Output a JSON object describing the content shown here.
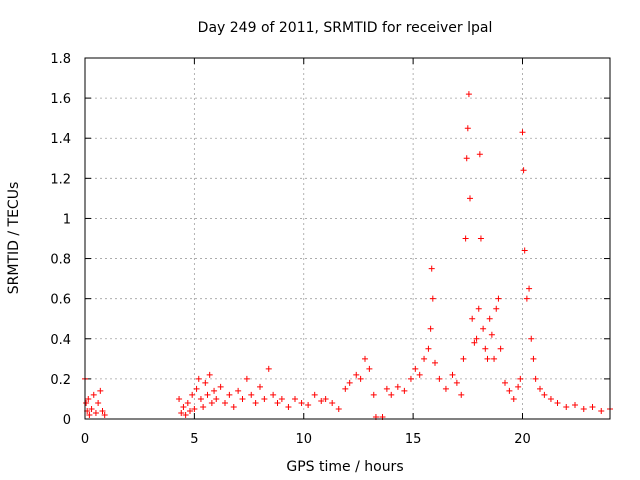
{
  "chart_data": {
    "type": "scatter",
    "title": "Day 249 of 2011, SRMTID for receiver lpal",
    "xlabel": "GPS time / hours",
    "ylabel": "SRMTID / TECUs",
    "xlim": [
      0,
      24
    ],
    "ylim": [
      0,
      1.8
    ],
    "xticks": [
      "0",
      "5",
      "10",
      "15",
      "20"
    ],
    "yticks": [
      "0",
      "0.2",
      "0.4",
      "0.6",
      "0.8",
      "1",
      "1.2",
      "1.4",
      "1.6",
      "1.8"
    ],
    "grid": true,
    "marker": "+",
    "color": "#ff0000",
    "series": [
      {
        "name": "SRMTID",
        "x": [
          0.0,
          0.05,
          0.1,
          0.15,
          0.2,
          0.3,
          0.4,
          0.5,
          0.6,
          0.7,
          0.8,
          0.9,
          4.3,
          4.4,
          4.5,
          4.6,
          4.7,
          4.8,
          4.9,
          5.0,
          5.1,
          5.2,
          5.3,
          5.4,
          5.5,
          5.6,
          5.7,
          5.8,
          5.9,
          6.0,
          6.2,
          6.4,
          6.6,
          6.8,
          7.0,
          7.2,
          7.4,
          7.6,
          7.8,
          8.0,
          8.2,
          8.4,
          8.6,
          8.8,
          9.0,
          9.3,
          9.6,
          9.9,
          10.2,
          10.5,
          10.8,
          11.0,
          11.3,
          11.6,
          11.9,
          12.1,
          12.4,
          12.6,
          12.8,
          13.0,
          13.2,
          13.3,
          13.6,
          13.8,
          14.0,
          14.3,
          14.6,
          14.9,
          15.1,
          15.3,
          15.5,
          15.7,
          15.8,
          15.85,
          15.9,
          16.0,
          16.2,
          16.5,
          16.8,
          17.0,
          17.2,
          17.3,
          17.4,
          17.45,
          17.5,
          17.55,
          17.6,
          17.7,
          17.8,
          17.9,
          18.0,
          18.05,
          18.1,
          18.2,
          18.3,
          18.4,
          18.5,
          18.6,
          18.7,
          18.8,
          18.9,
          19.0,
          19.2,
          19.4,
          19.6,
          19.8,
          19.9,
          20.0,
          20.05,
          20.1,
          20.2,
          20.3,
          20.4,
          20.5,
          20.6,
          20.8,
          21.0,
          21.3,
          21.6,
          22.0,
          22.4,
          22.8,
          23.2,
          23.6,
          24.0
        ],
        "y": [
          0.2,
          0.08,
          0.04,
          0.1,
          0.02,
          0.05,
          0.12,
          0.03,
          0.08,
          0.14,
          0.04,
          0.02,
          0.1,
          0.03,
          0.06,
          0.02,
          0.08,
          0.04,
          0.12,
          0.05,
          0.15,
          0.2,
          0.1,
          0.06,
          0.18,
          0.12,
          0.22,
          0.08,
          0.14,
          0.1,
          0.16,
          0.08,
          0.12,
          0.06,
          0.14,
          0.1,
          0.2,
          0.12,
          0.08,
          0.16,
          0.1,
          0.25,
          0.12,
          0.08,
          0.1,
          0.06,
          0.1,
          0.08,
          0.07,
          0.12,
          0.09,
          0.1,
          0.08,
          0.05,
          0.15,
          0.18,
          0.22,
          0.2,
          0.3,
          0.25,
          0.12,
          0.01,
          0.01,
          0.15,
          0.12,
          0.16,
          0.14,
          0.2,
          0.25,
          0.22,
          0.3,
          0.35,
          0.45,
          0.75,
          0.6,
          0.28,
          0.2,
          0.15,
          0.22,
          0.18,
          0.12,
          0.3,
          0.9,
          1.3,
          1.45,
          1.62,
          1.1,
          0.5,
          0.38,
          0.4,
          0.55,
          1.32,
          0.9,
          0.45,
          0.35,
          0.3,
          0.5,
          0.42,
          0.3,
          0.55,
          0.6,
          0.35,
          0.18,
          0.14,
          0.1,
          0.16,
          0.2,
          1.43,
          1.24,
          0.84,
          0.6,
          0.65,
          0.4,
          0.3,
          0.2,
          0.15,
          0.12,
          0.1,
          0.08,
          0.06,
          0.07,
          0.05,
          0.06,
          0.04,
          0.05
        ]
      }
    ]
  }
}
